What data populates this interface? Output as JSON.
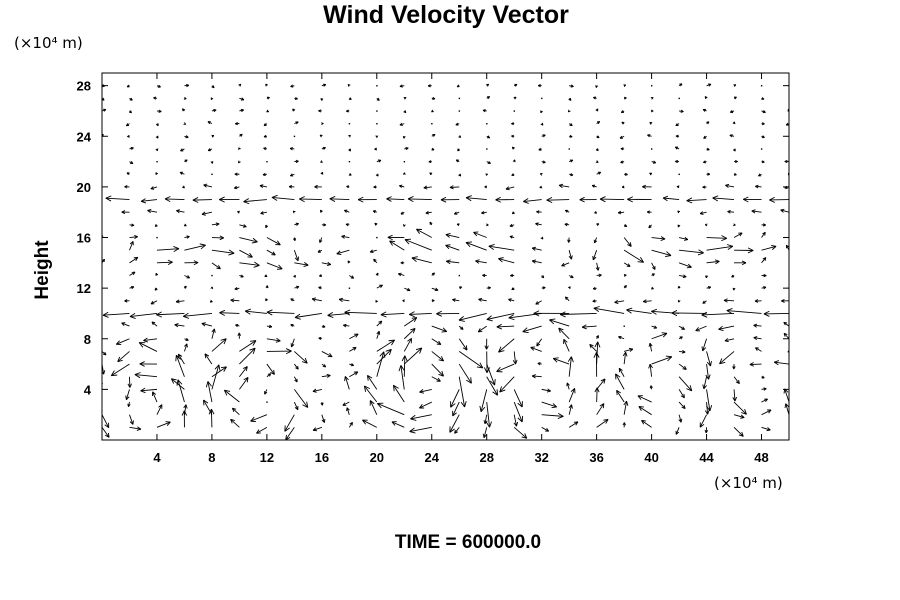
{
  "chart_data": {
    "type": "quiver",
    "title": "Wind Velocity Vector",
    "xlabel": "",
    "ylabel": "Height",
    "x_unit": "(×10⁴ m)",
    "y_unit": "(×10⁴ m)",
    "footer": "TIME = 600000.0",
    "xlim": [
      0,
      50
    ],
    "ylim": [
      0,
      29
    ],
    "xticks": [
      4,
      8,
      12,
      16,
      20,
      24,
      28,
      32,
      36,
      40,
      44,
      48
    ],
    "yticks": [
      4,
      8,
      12,
      16,
      20,
      24,
      28
    ],
    "grid": false,
    "grid_x": [
      0,
      2,
      4,
      6,
      8,
      10,
      12,
      14,
      16,
      18,
      20,
      22,
      24,
      26,
      28,
      30,
      32,
      34,
      36,
      38,
      40,
      42,
      44,
      46,
      48,
      50
    ],
    "grid_y": [
      1,
      2,
      3,
      4,
      5,
      6,
      7,
      8,
      9,
      10,
      11,
      12,
      13,
      14,
      15,
      16,
      17,
      18,
      19,
      20,
      21,
      22,
      23,
      24,
      25,
      26,
      27,
      28
    ],
    "vectors": [
      {
        "y": 10,
        "u": -2.2,
        "v": 0
      },
      {
        "y": 19,
        "u": -1.6,
        "v": 0
      }
    ],
    "vortices": [
      {
        "cx": 23.5,
        "cy": 4.5,
        "strength": 1.6,
        "sense": -1
      },
      {
        "cx": 32.5,
        "cy": 4.5,
        "strength": 1.1,
        "sense": 1
      },
      {
        "cx": 11.5,
        "cy": 3.5,
        "strength": 1.2,
        "sense": -1
      },
      {
        "cx": 3.5,
        "cy": 3.0,
        "strength": 0.9,
        "sense": 1
      },
      {
        "cx": 41.0,
        "cy": 4.0,
        "strength": 0.8,
        "sense": -1
      },
      {
        "cx": 47.0,
        "cy": 4.5,
        "strength": 0.7,
        "sense": 1
      }
    ]
  }
}
